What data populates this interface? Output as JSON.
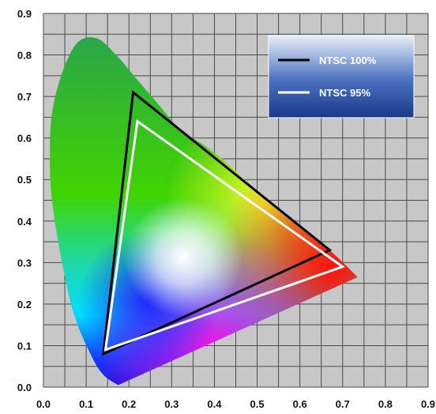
{
  "chart_data": {
    "type": "line",
    "title": "",
    "xlabel": "",
    "ylabel": "",
    "xlim": [
      0,
      0.9
    ],
    "ylim": [
      0,
      0.9
    ],
    "x_ticks": [
      "0.0",
      "0.1",
      "0.2",
      "0.3",
      "0.4",
      "0.5",
      "0.6",
      "0.7",
      "0.8",
      "0.9"
    ],
    "y_ticks": [
      "0.0",
      "0.1",
      "0.2",
      "0.3",
      "0.4",
      "0.5",
      "0.6",
      "0.7",
      "0.8",
      "0.9"
    ],
    "grid": true,
    "legend_position": "top-right",
    "background_color": "#c7c7c7",
    "series": [
      {
        "name": "NTSC 100%",
        "color": "#000000",
        "closed": true,
        "x": [
          0.21,
          0.67,
          0.14
        ],
        "y": [
          0.71,
          0.33,
          0.08
        ]
      },
      {
        "name": "NTSC 95%",
        "color": "#ffffff",
        "closed": true,
        "x": [
          0.22,
          0.7,
          0.145
        ],
        "y": [
          0.64,
          0.29,
          0.09
        ]
      }
    ],
    "gamut": {
      "x": [
        0.175,
        0.14,
        0.11,
        0.07,
        0.04,
        0.02,
        0.015,
        0.02,
        0.045,
        0.08,
        0.125,
        0.17,
        0.22,
        0.27,
        0.32,
        0.38,
        0.44,
        0.5,
        0.56,
        0.62,
        0.68,
        0.735
      ],
      "y": [
        0.005,
        0.03,
        0.08,
        0.18,
        0.32,
        0.45,
        0.55,
        0.66,
        0.76,
        0.83,
        0.84,
        0.8,
        0.74,
        0.68,
        0.62,
        0.58,
        0.53,
        0.47,
        0.42,
        0.37,
        0.32,
        0.265
      ]
    }
  }
}
